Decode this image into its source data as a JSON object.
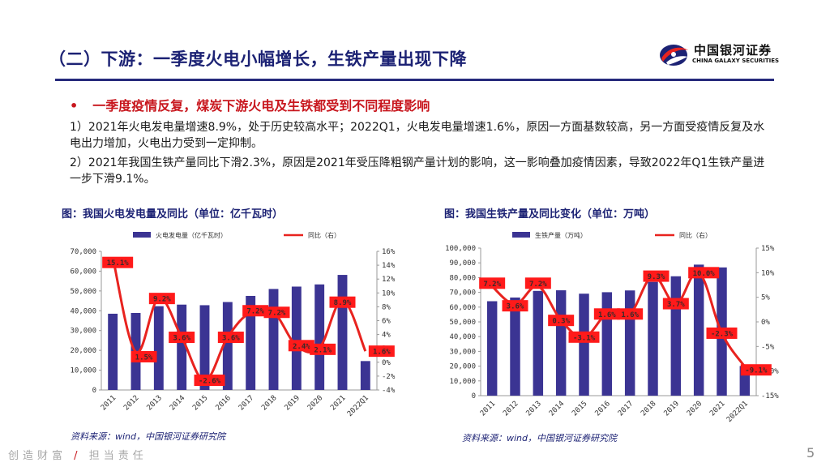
{
  "header": {
    "title": "（二）下游：一季度火电小幅增长，生铁产量出现下降"
  },
  "logo": {
    "name_cn": "中国银河证券",
    "name_en": "CHINA GALAXY SECURITIES"
  },
  "bullet": {
    "text": "一季度疫情反复，煤炭下游火电及生铁都受到不同程度影响"
  },
  "paragraphs": [
    "1）2021年火电发电量增速8.9%，处于历史较高水平；2022Q1，火电发电量增速1.6%，原因一方面基数较高，另一方面受疫情反复及水电出力增加，火电出力受到一定抑制。",
    "2）2021年我国生铁产量同比下滑2.3%，原因是2021年受压降粗钢产量计划的影响，这一影响叠加疫情因素，导致2022年Q1生铁产量进一步下滑9.1%。"
  ],
  "footer": {
    "left": "创造财富",
    "slash": "/",
    "right": "担当责任",
    "page": "5"
  },
  "colors": {
    "bar": "#3b3493",
    "line": "#e8231f",
    "label_bg": "#ff1a1a"
  },
  "chart_data": [
    {
      "type": "bar",
      "title": "图：我国火电发电量及同比（单位：亿千瓦时）",
      "source": "资料来源：wind，中国银河证券研究院",
      "categories": [
        "2011",
        "2012",
        "2013",
        "2014",
        "2015",
        "2016",
        "2017",
        "2018",
        "2019",
        "2020",
        "2021",
        "2022Q1"
      ],
      "series": [
        {
          "name": "火电发电量（亿千瓦时）",
          "type": "bar",
          "axis": "left",
          "values": [
            38500,
            38900,
            42300,
            43100,
            42800,
            44400,
            47500,
            51000,
            52200,
            53300,
            58100,
            14600
          ]
        },
        {
          "name": "同比（右）",
          "type": "line",
          "axis": "right",
          "values": [
            15.1,
            1.5,
            9.2,
            3.6,
            -2.6,
            3.6,
            7.2,
            7.2,
            2.4,
            2.1,
            8.9,
            1.6
          ],
          "labels": [
            "15.1%",
            "1.5%",
            "9.2%",
            "3.6%",
            "-2.6%",
            "3.6%",
            "7.2%",
            "7.2%",
            "2.4%",
            "2.1%",
            "8.9%",
            "1.6%"
          ]
        }
      ],
      "yleft": {
        "min": 0,
        "max": 70000,
        "step": 10000,
        "ticks": [
          "0",
          "10,000",
          "20,000",
          "30,000",
          "40,000",
          "50,000",
          "60,000",
          "70,000"
        ]
      },
      "yright": {
        "min": -4,
        "max": 16,
        "step": 2,
        "ticks": [
          "-4%",
          "-2%",
          "0%",
          "2%",
          "4%",
          "6%",
          "8%",
          "10%",
          "12%",
          "14%",
          "16%"
        ]
      },
      "legend_position": "top"
    },
    {
      "type": "bar",
      "title": "图：我国生铁产量及同比变化（单位：万吨）",
      "source": "资料来源：wind，中国银河证券研究院",
      "categories": [
        "2011",
        "2012",
        "2013",
        "2014",
        "2015",
        "2016",
        "2017",
        "2018",
        "2019",
        "2020",
        "2021",
        "2022Q1"
      ],
      "series": [
        {
          "name": "生铁产量（万吨）",
          "type": "bar",
          "axis": "left",
          "values": [
            64000,
            66500,
            71000,
            71400,
            69100,
            70100,
            71300,
            77100,
            80900,
            88800,
            86900,
            20100
          ]
        },
        {
          "name": "同比（右）",
          "type": "line",
          "axis": "right",
          "values": [
            7.2,
            3.6,
            7.2,
            0.3,
            -3.1,
            1.6,
            1.6,
            9.3,
            3.7,
            10.0,
            -2.3,
            -9.1
          ],
          "labels": [
            "7.2%",
            "3.6%",
            "7.2%",
            "0.3%",
            "-3.1%",
            "1.6%",
            "1.6%",
            "9.3%",
            "3.7%",
            "10.0%",
            "-2.3%",
            "-9.1%"
          ]
        }
      ],
      "yleft": {
        "min": 0,
        "max": 100000,
        "step": 10000,
        "ticks": [
          "0",
          "10,000",
          "20,000",
          "30,000",
          "40,000",
          "50,000",
          "60,000",
          "70,000",
          "80,000",
          "90,000",
          "100,000"
        ]
      },
      "yright": {
        "min": -15,
        "max": 15,
        "step": 5,
        "ticks": [
          "-15%",
          "-10%",
          "-5%",
          "0%",
          "5%",
          "10%",
          "15%"
        ]
      },
      "legend_position": "top"
    }
  ]
}
